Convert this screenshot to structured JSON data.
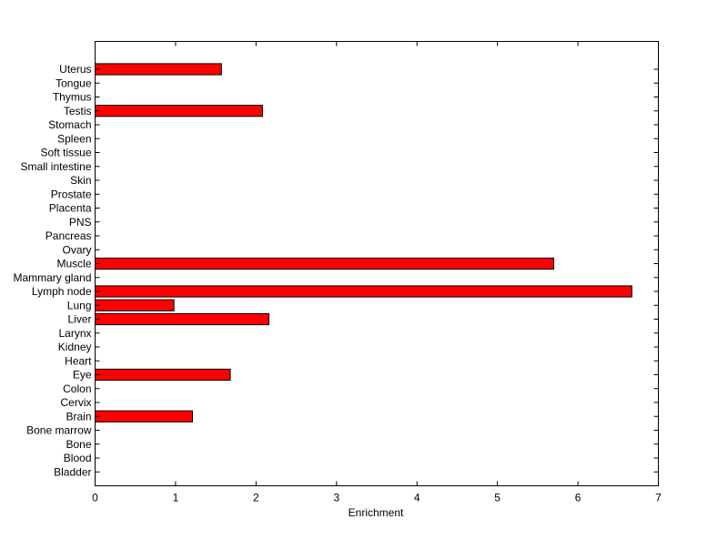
{
  "chart_data": {
    "type": "bar",
    "orientation": "horizontal",
    "title": "",
    "xlabel": "Enrichment",
    "ylabel": "",
    "xlim": [
      0,
      7
    ],
    "xticks": [
      0,
      1,
      2,
      3,
      4,
      5,
      6,
      7
    ],
    "grid": false,
    "bar_color": "#ff0000",
    "categories": [
      "Bladder",
      "Blood",
      "Bone",
      "Bone marrow",
      "Brain",
      "Cervix",
      "Colon",
      "Eye",
      "Heart",
      "Kidney",
      "Larynx",
      "Liver",
      "Lung",
      "Lymph node",
      "Mammary gland",
      "Muscle",
      "Ovary",
      "Pancreas",
      "PNS",
      "Placenta",
      "Prostate",
      "Skin",
      "Small intestine",
      "Soft tissue",
      "Spleen",
      "Stomach",
      "Testis",
      "Thymus",
      "Tongue",
      "Uterus"
    ],
    "values": [
      0,
      0,
      0,
      0,
      1.21,
      0,
      0,
      1.68,
      0,
      0,
      0,
      2.16,
      0.98,
      6.67,
      0,
      5.7,
      0,
      0,
      0,
      0,
      0,
      0,
      0,
      0,
      0,
      0,
      2.08,
      0,
      0,
      1.57
    ]
  }
}
